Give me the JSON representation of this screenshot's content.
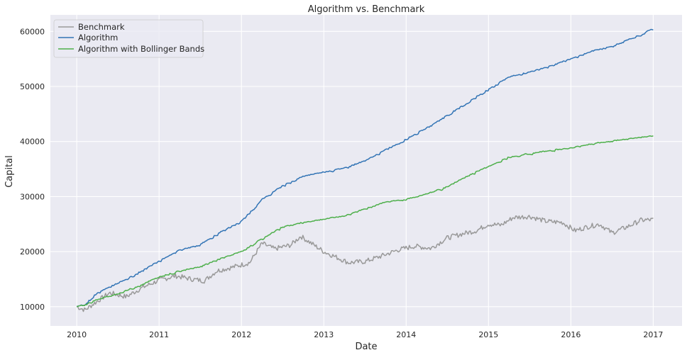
{
  "chart_data": {
    "type": "line",
    "title": "Algorithm vs. Benchmark",
    "xlabel": "Date",
    "ylabel": "Capital",
    "xlim": [
      2009.68,
      2017.35
    ],
    "ylim": [
      6500,
      63000
    ],
    "x_ticks": [
      "2010",
      "2011",
      "2012",
      "2013",
      "2014",
      "2015",
      "2016",
      "2017"
    ],
    "y_ticks": [
      10000,
      20000,
      30000,
      40000,
      50000,
      60000
    ],
    "y_tick_labels": [
      "10000",
      "20000",
      "30000",
      "40000",
      "50000",
      "60000"
    ],
    "grid": true,
    "legend_position": "top-left",
    "series": [
      {
        "name": "Benchmark",
        "color": "#999999",
        "x": [
          2010.0,
          2010.1,
          2010.25,
          2010.4,
          2010.6,
          2010.8,
          2011.0,
          2011.2,
          2011.4,
          2011.55,
          2011.7,
          2011.9,
          2012.1,
          2012.25,
          2012.4,
          2012.6,
          2012.72,
          2012.85,
          2013.0,
          2013.15,
          2013.3,
          2013.5,
          2013.7,
          2013.9,
          2014.1,
          2014.3,
          2014.5,
          2014.7,
          2014.85,
          2015.0,
          2015.15,
          2015.3,
          2015.5,
          2015.7,
          2015.9,
          2016.05,
          2016.2,
          2016.35,
          2016.5,
          2016.7,
          2016.85,
          2017.0
        ],
        "y": [
          10000,
          9400,
          11000,
          12500,
          11800,
          13500,
          14800,
          15600,
          15000,
          14700,
          16500,
          17200,
          18000,
          21500,
          20500,
          21200,
          22800,
          21500,
          20000,
          19000,
          18000,
          18200,
          19200,
          20300,
          21000,
          20600,
          22500,
          23300,
          23800,
          25000,
          24800,
          26200,
          26400,
          25500,
          25300,
          23800,
          24500,
          25000,
          23400,
          24600,
          25700,
          25800
        ]
      },
      {
        "name": "Algorithm",
        "color": "#3274b5",
        "x": [
          2010.0,
          2010.1,
          2010.25,
          2010.5,
          2010.75,
          2011.0,
          2011.25,
          2011.5,
          2011.75,
          2012.0,
          2012.25,
          2012.5,
          2012.75,
          2013.0,
          2013.25,
          2013.5,
          2013.75,
          2014.0,
          2014.25,
          2014.5,
          2014.75,
          2015.0,
          2015.25,
          2015.5,
          2015.75,
          2016.0,
          2016.25,
          2016.5,
          2016.75,
          2017.0
        ],
        "y": [
          10000,
          10600,
          12500,
          14300,
          16200,
          18300,
          20300,
          21300,
          23600,
          25500,
          29500,
          32000,
          33700,
          34500,
          35200,
          36500,
          38500,
          40500,
          42500,
          44800,
          47200,
          49500,
          51800,
          52600,
          53800,
          55000,
          56400,
          57300,
          58800,
          60500
        ]
      },
      {
        "name": "Algorithm with Bollinger Bands",
        "color": "#4daf4a",
        "x": [
          2010.0,
          2010.1,
          2010.25,
          2010.5,
          2010.75,
          2011.0,
          2011.25,
          2011.5,
          2011.75,
          2012.0,
          2012.25,
          2012.5,
          2012.75,
          2013.0,
          2013.25,
          2013.5,
          2013.75,
          2014.0,
          2014.25,
          2014.5,
          2014.75,
          2015.0,
          2015.25,
          2015.5,
          2015.75,
          2016.0,
          2016.25,
          2016.5,
          2016.75,
          2017.0
        ],
        "y": [
          10000,
          10400,
          11300,
          12400,
          13800,
          15400,
          16500,
          17300,
          18800,
          20000,
          22400,
          24500,
          25300,
          25900,
          26500,
          27800,
          29000,
          29500,
          30500,
          31800,
          33800,
          35500,
          37200,
          37800,
          38400,
          38800,
          39600,
          40100,
          40600,
          41000
        ]
      }
    ]
  }
}
